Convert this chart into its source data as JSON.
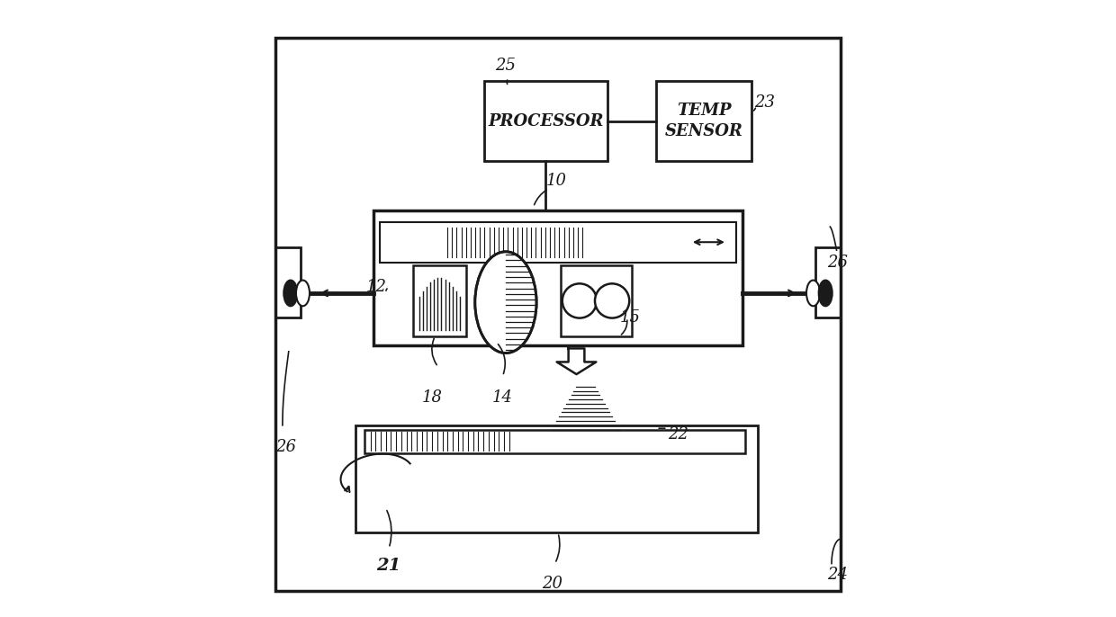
{
  "bg_color": "#ffffff",
  "line_color": "#1a1a1a",
  "PROCESSOR_text": "PROCESSOR",
  "TEMP_SENSOR_text": "TEMP\nSENSOR"
}
